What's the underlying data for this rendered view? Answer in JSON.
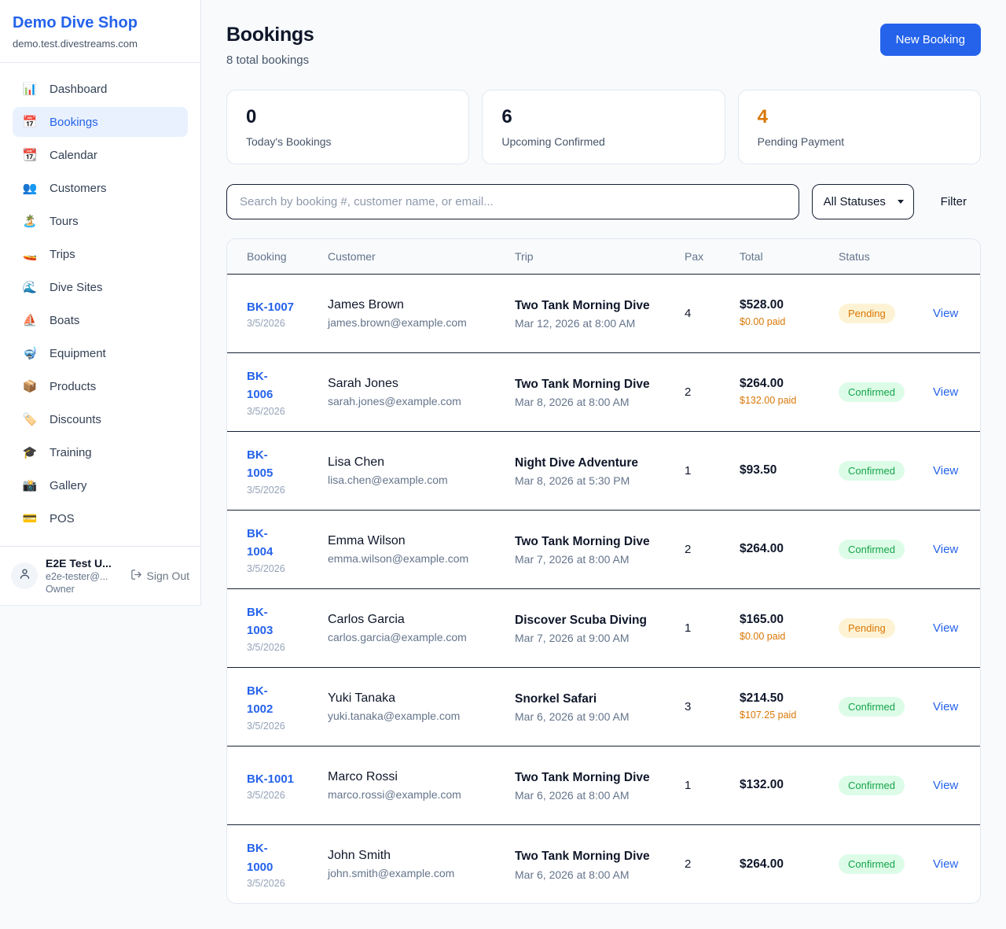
{
  "colors": {
    "accent_blue": "#2563eb",
    "pending_text": "#d97706",
    "pending_bg": "#fdf3d4",
    "confirmed_text": "#16a34a",
    "confirmed_bg": "#dcfce7",
    "page_bg": "#f8fafc"
  },
  "sidebar": {
    "brand": "Demo Dive Shop",
    "shop_domain": "demo.test.divestreams.com",
    "items": [
      {
        "label": "Dashboard",
        "slug": "dashboard",
        "icon": "📊",
        "icon_name": "bar-chart-icon",
        "active": false
      },
      {
        "label": "Bookings",
        "slug": "bookings",
        "icon": "📅",
        "icon_name": "calendar-icon",
        "active": true
      },
      {
        "label": "Calendar",
        "slug": "calendar",
        "icon": "📆",
        "icon_name": "tear-calendar-icon",
        "active": false
      },
      {
        "label": "Customers",
        "slug": "customers",
        "icon": "👥",
        "icon_name": "people-icon",
        "active": false
      },
      {
        "label": "Tours",
        "slug": "tours",
        "icon": "🏝️",
        "icon_name": "island-icon",
        "active": false
      },
      {
        "label": "Trips",
        "slug": "trips",
        "icon": "🚤",
        "icon_name": "speedboat-icon",
        "active": false
      },
      {
        "label": "Dive Sites",
        "slug": "dive-sites",
        "icon": "🌊",
        "icon_name": "wave-icon",
        "active": false
      },
      {
        "label": "Boats",
        "slug": "boats",
        "icon": "⛵",
        "icon_name": "sailboat-icon",
        "active": false
      },
      {
        "label": "Equipment",
        "slug": "equipment",
        "icon": "🤿",
        "icon_name": "diving-mask-icon",
        "active": false
      },
      {
        "label": "Products",
        "slug": "products",
        "icon": "📦",
        "icon_name": "package-icon",
        "active": false
      },
      {
        "label": "Discounts",
        "slug": "discounts",
        "icon": "🏷️",
        "icon_name": "tag-icon",
        "active": false
      },
      {
        "label": "Training",
        "slug": "training",
        "icon": "🎓",
        "icon_name": "graduation-cap-icon",
        "active": false
      },
      {
        "label": "Gallery",
        "slug": "gallery",
        "icon": "📸",
        "icon_name": "camera-icon",
        "active": false
      },
      {
        "label": "POS",
        "slug": "pos",
        "icon": "💳",
        "icon_name": "credit-card-icon",
        "active": false
      }
    ],
    "user": {
      "name": "E2E Test U...",
      "email": "e2e-tester@...",
      "role": "Owner",
      "sign_out": "Sign Out"
    }
  },
  "header": {
    "title": "Bookings",
    "subtitle": "8 total bookings",
    "new_booking": "New Booking"
  },
  "stats": [
    {
      "value": "0",
      "label": "Today's Bookings",
      "accent": false
    },
    {
      "value": "6",
      "label": "Upcoming Confirmed",
      "accent": false
    },
    {
      "value": "4",
      "label": "Pending Payment",
      "accent": true
    }
  ],
  "toolbar": {
    "search_placeholder": "Search by booking #, customer name, or email...",
    "status_filter": "All Statuses",
    "filter_label": "Filter"
  },
  "table": {
    "columns": [
      "Booking",
      "Customer",
      "Trip",
      "Pax",
      "Total",
      "Status",
      ""
    ],
    "view_label": "View",
    "rows": [
      {
        "id": "BK-1007",
        "id_two_lines": false,
        "date": "3/5/2026",
        "customer": "James Brown",
        "email": "james.brown@example.com",
        "trip": "Two Tank Morning Dive",
        "trip_datetime": "Mar 12, 2026 at 8:00 AM",
        "pax": "4",
        "total": "$528.00",
        "paid": "$0.00 paid",
        "status": "Pending"
      },
      {
        "id": "BK-1006",
        "id_two_lines": true,
        "date": "3/5/2026",
        "customer": "Sarah Jones",
        "email": "sarah.jones@example.com",
        "trip": "Two Tank Morning Dive",
        "trip_datetime": "Mar 8, 2026 at 8:00 AM",
        "pax": "2",
        "total": "$264.00",
        "paid": "$132.00 paid",
        "status": "Confirmed"
      },
      {
        "id": "BK-1005",
        "id_two_lines": true,
        "date": "3/5/2026",
        "customer": "Lisa Chen",
        "email": "lisa.chen@example.com",
        "trip": "Night Dive Adventure",
        "trip_datetime": "Mar 8, 2026 at 5:30 PM",
        "pax": "1",
        "total": "$93.50",
        "paid": null,
        "status": "Confirmed"
      },
      {
        "id": "BK-1004",
        "id_two_lines": true,
        "date": "3/5/2026",
        "customer": "Emma Wilson",
        "email": "emma.wilson@example.com",
        "trip": "Two Tank Morning Dive",
        "trip_datetime": "Mar 7, 2026 at 8:00 AM",
        "pax": "2",
        "total": "$264.00",
        "paid": null,
        "status": "Confirmed"
      },
      {
        "id": "BK-1003",
        "id_two_lines": true,
        "date": "3/5/2026",
        "customer": "Carlos Garcia",
        "email": "carlos.garcia@example.com",
        "trip": "Discover Scuba Diving",
        "trip_datetime": "Mar 7, 2026 at 9:00 AM",
        "pax": "1",
        "total": "$165.00",
        "paid": "$0.00 paid",
        "status": "Pending"
      },
      {
        "id": "BK-1002",
        "id_two_lines": true,
        "date": "3/5/2026",
        "customer": "Yuki Tanaka",
        "email": "yuki.tanaka@example.com",
        "trip": "Snorkel Safari",
        "trip_datetime": "Mar 6, 2026 at 9:00 AM",
        "pax": "3",
        "total": "$214.50",
        "paid": "$107.25 paid",
        "status": "Confirmed"
      },
      {
        "id": "BK-1001",
        "id_two_lines": false,
        "date": "3/5/2026",
        "customer": "Marco Rossi",
        "email": "marco.rossi@example.com",
        "trip": "Two Tank Morning Dive",
        "trip_datetime": "Mar 6, 2026 at 8:00 AM",
        "pax": "1",
        "total": "$132.00",
        "paid": null,
        "status": "Confirmed"
      },
      {
        "id": "BK-1000",
        "id_two_lines": true,
        "date": "3/5/2026",
        "customer": "John Smith",
        "email": "john.smith@example.com",
        "trip": "Two Tank Morning Dive",
        "trip_datetime": "Mar 6, 2026 at 8:00 AM",
        "pax": "2",
        "total": "$264.00",
        "paid": null,
        "status": "Confirmed"
      }
    ]
  }
}
